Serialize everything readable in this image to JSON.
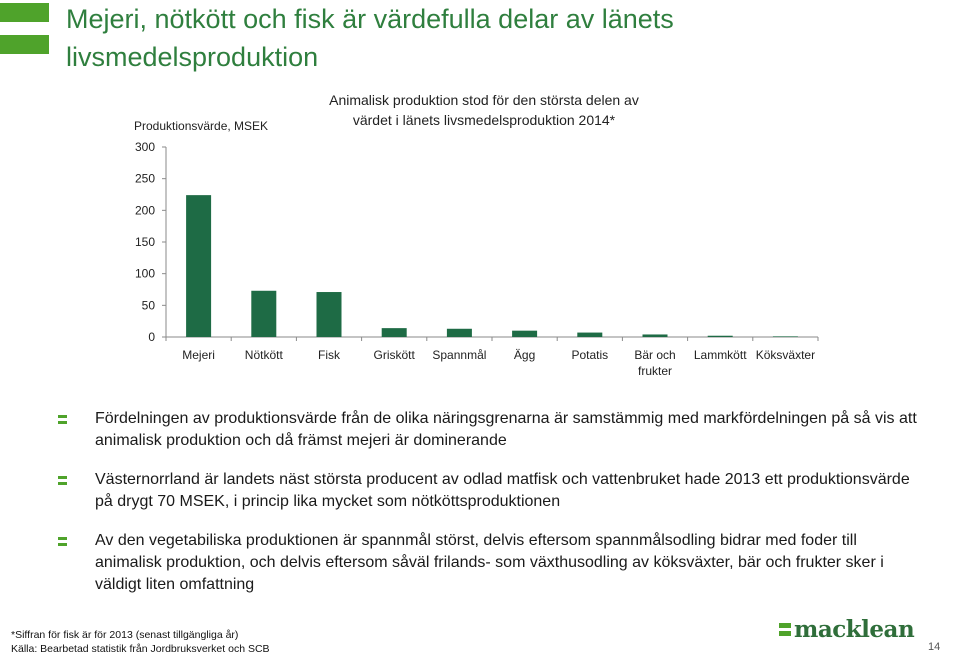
{
  "slide": {
    "title": "Mejeri, nötkött och fisk är värdefulla delar av länets livsmedelsproduktion",
    "bullets": [
      "Fördelningen av produktionsvärde från de olika näringsgrenarna är samstämmig med markfördelningen på så vis att animalisk produktion och då främst mejeri är dominerande",
      "Västernorrland är landets näst största producent av odlad matfisk och vattenbruket hade 2013 ett produktionsvärde på drygt 70 MSEK, i princip lika mycket som nötköttsproduktionen",
      "Av den vegetabiliska produktionen är spannmål störst, delvis eftersom spannmålsodling bidrar med foder till animalisk produktion, och delvis eftersom såväl frilands- som växthusodling av köksväxter, bär och frukter sker i väldigt liten omfattning"
    ],
    "footnote_1": "*Siffran för fisk är för 2013 (senast tillgängliga år)",
    "footnote_2": "Källa: Bearbetad statistik från Jordbruksverket och SCB",
    "logo_text": "macklean",
    "page_number": "14",
    "colors": {
      "accent": "#4fa32b",
      "title": "#2f7f3e",
      "bar": "#1e6b45",
      "logo": "#2f6e3a"
    }
  },
  "chart_data": {
    "type": "bar",
    "title_line1": "Animalisk produktion stod för den största delen av",
    "title_line2": "värdet i länets livsmedelsproduktion 2014*",
    "ylabel": "Produktionsvärde, MSEK",
    "ylim": [
      0,
      300
    ],
    "yticks": [
      0,
      50,
      100,
      150,
      200,
      250,
      300
    ],
    "grid": false,
    "categories": [
      [
        "Mejeri"
      ],
      [
        "Nötkött"
      ],
      [
        "Fisk"
      ],
      [
        "Griskött"
      ],
      [
        "Spannmål"
      ],
      [
        "Ägg"
      ],
      [
        "Potatis"
      ],
      [
        "Bär och",
        "frukter"
      ],
      [
        "Lammkött"
      ],
      [
        "Köksväxter"
      ]
    ],
    "values": [
      224,
      73,
      71,
      14,
      13,
      10,
      7,
      4,
      2,
      1
    ]
  }
}
